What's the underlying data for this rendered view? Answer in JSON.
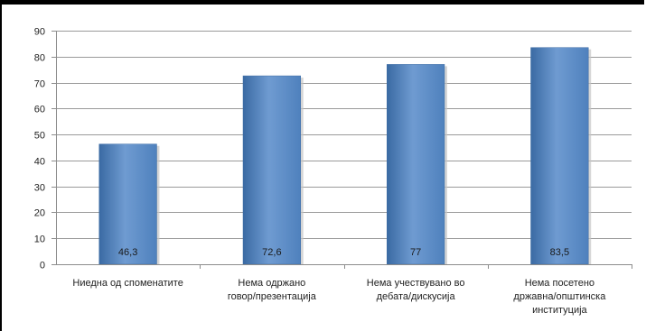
{
  "chart_data": {
    "type": "bar",
    "categories": [
      [
        "Ниедна од споменатите"
      ],
      [
        "Нема одржано",
        "говор/презентација"
      ],
      [
        "Нема учествувано во",
        "дебата/дискусија"
      ],
      [
        "Нема посетено",
        "државна/општинска",
        "институција"
      ]
    ],
    "values": [
      46.3,
      72.6,
      77,
      83.5
    ],
    "data_labels": [
      "46,3",
      "72,6",
      "77",
      "83,5"
    ],
    "ylim": [
      0,
      90
    ],
    "yticks": [
      0,
      10,
      20,
      30,
      40,
      50,
      60,
      70,
      80,
      90
    ],
    "grid": true,
    "legend": "none",
    "colors": {
      "bar": "#4f81bd",
      "bar_dark": "#3a6aa3",
      "bar_light": "#6f9bd1",
      "grid": "#9a9a9a",
      "axis": "#8c8c8c"
    }
  }
}
